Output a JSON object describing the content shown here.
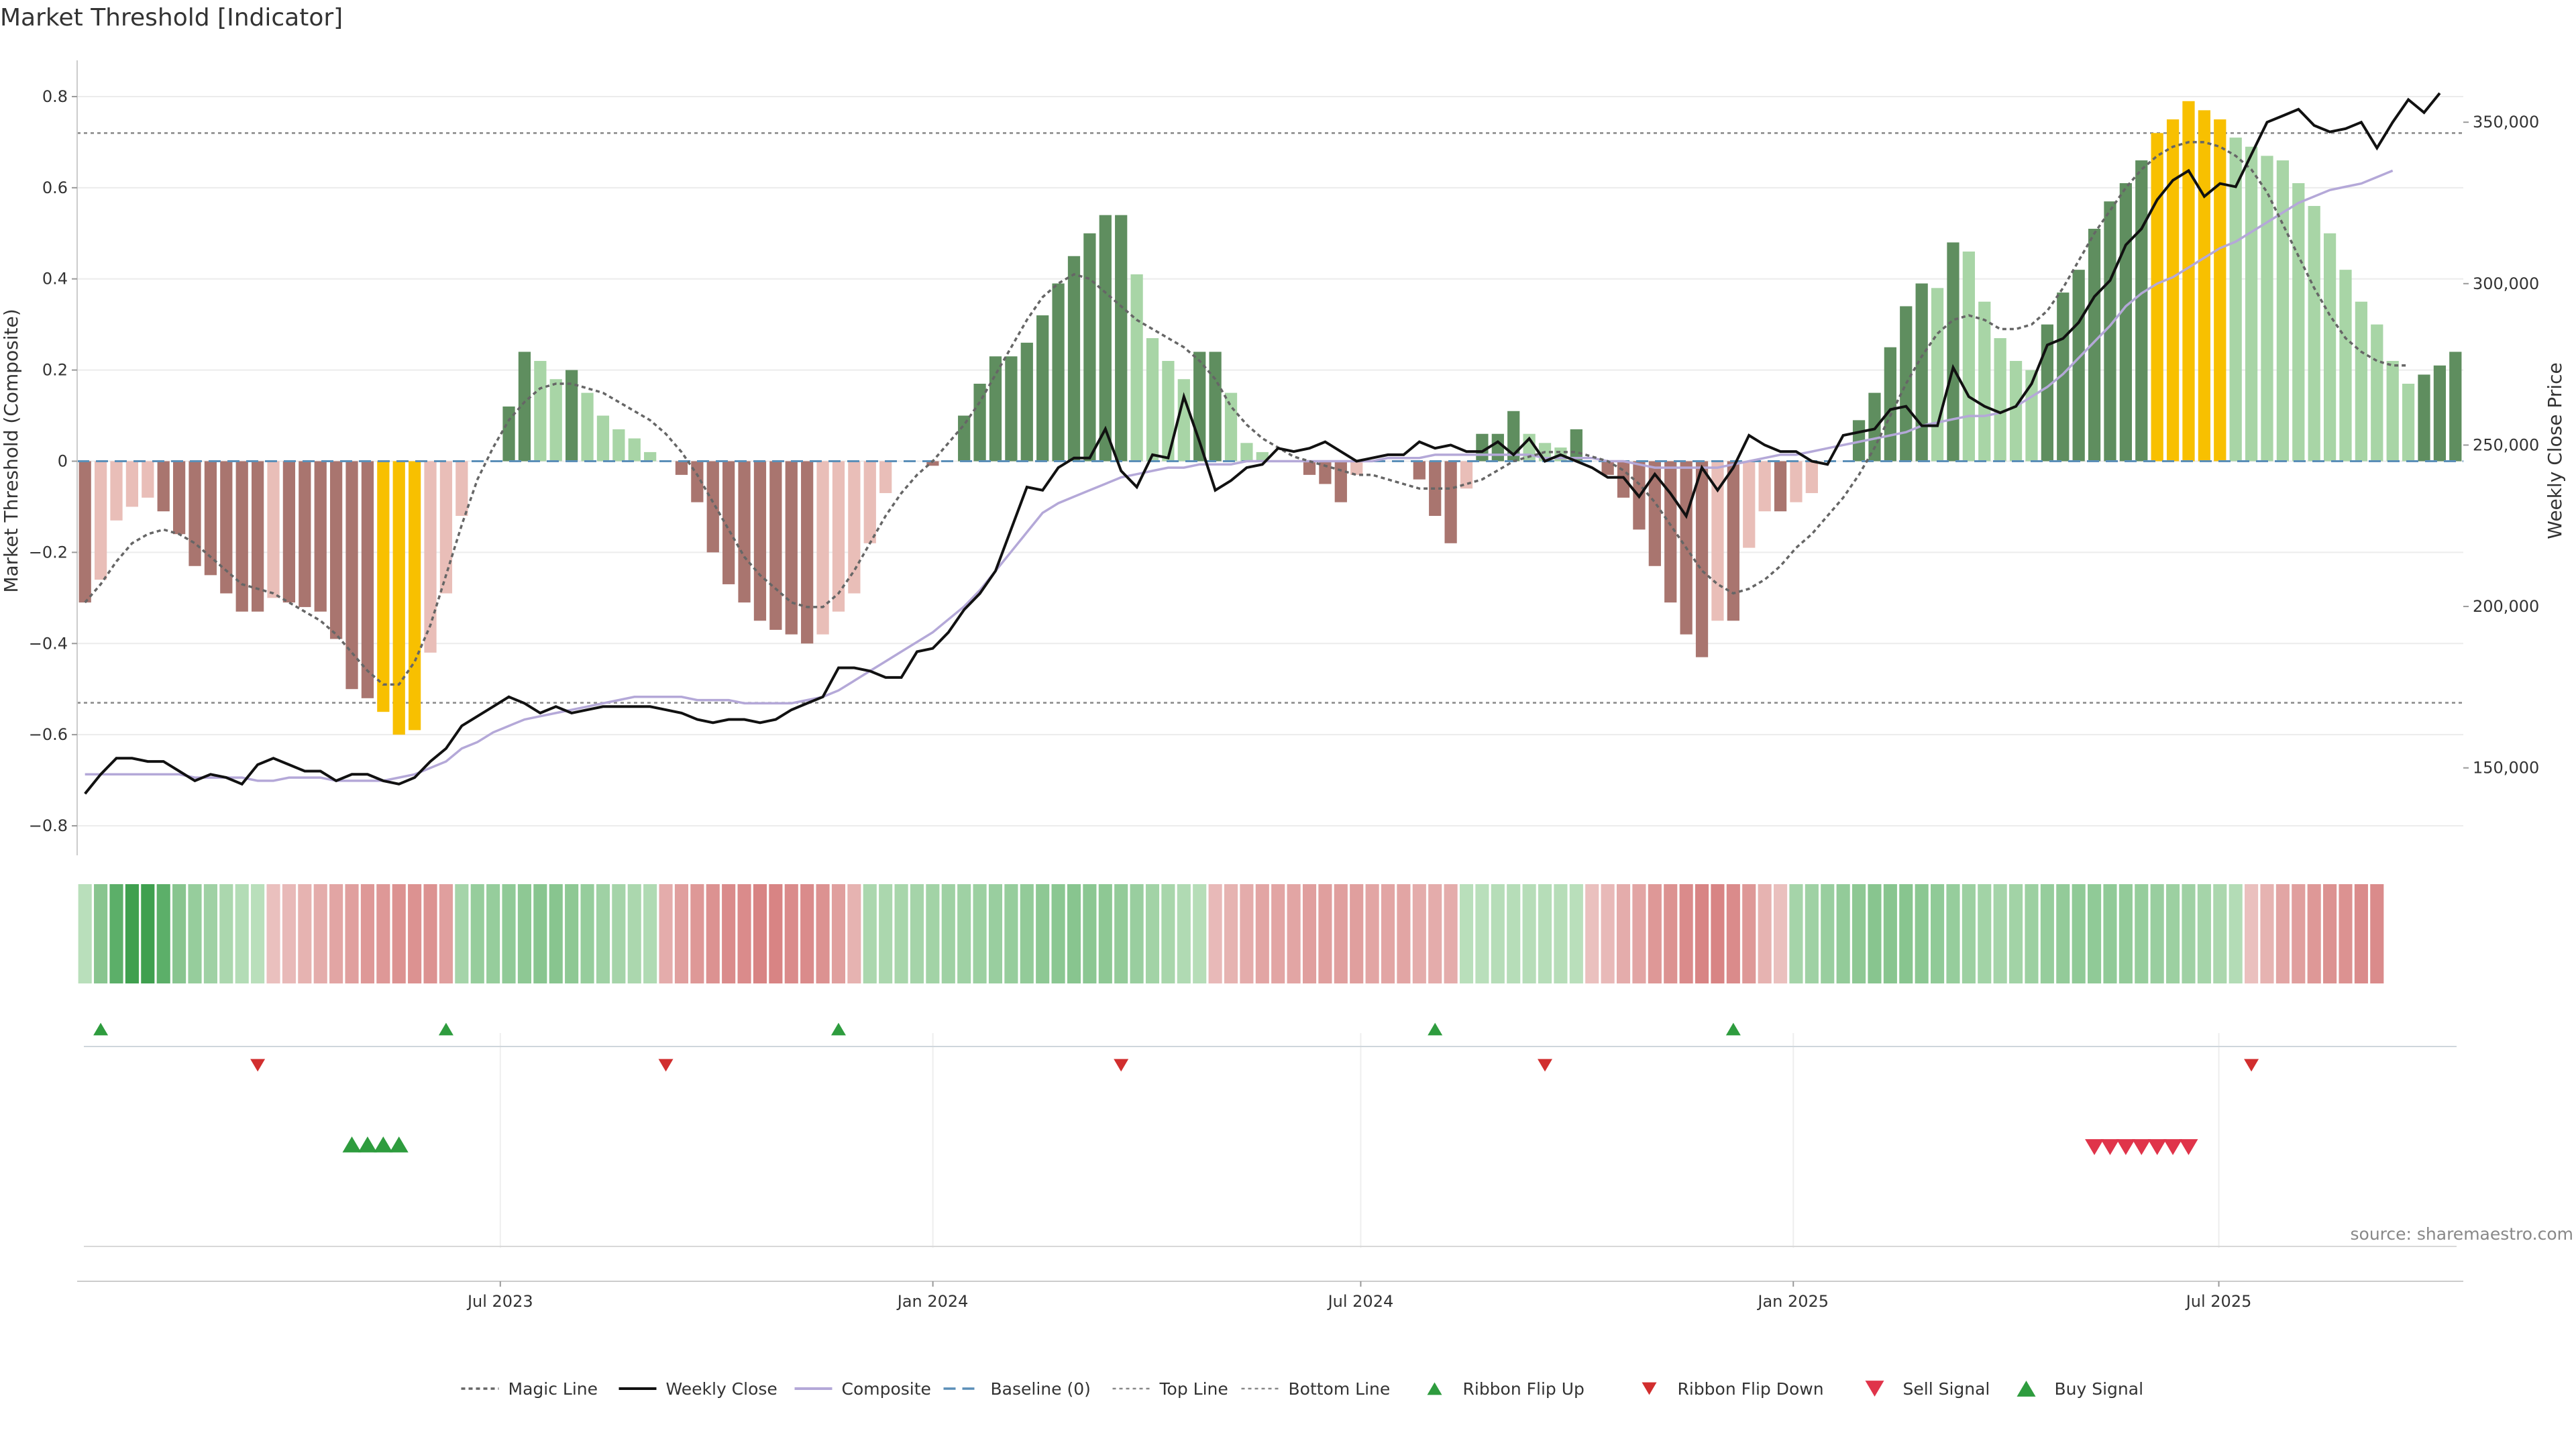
{
  "chart_data": {
    "type": "bar",
    "title": "Market Threshold [Indicator]",
    "ylabel_left": "Market Threshold (Composite)",
    "ylabel_right": "Weekly Close Price",
    "source": "source: sharemaestro.com",
    "x_range": [
      "2023-01-02",
      "2025-10-13"
    ],
    "x_ticks": [
      {
        "date": "2023-07-01",
        "label": "Jul 2023"
      },
      {
        "date": "2024-01-01",
        "label": "Jan 2024"
      },
      {
        "date": "2024-07-01",
        "label": "Jul 2024"
      },
      {
        "date": "2025-01-01",
        "label": "Jan 2025"
      },
      {
        "date": "2025-07-01",
        "label": "Jul 2025"
      }
    ],
    "ylim_left": [
      -0.85,
      0.85
    ],
    "yticks_left": [
      {
        "value": 0.8,
        "label": "0.8"
      },
      {
        "value": 0.6,
        "label": "0.6"
      },
      {
        "value": 0.4,
        "label": "0.4"
      },
      {
        "value": 0.2,
        "label": "0.2"
      },
      {
        "value": 0,
        "label": "0"
      },
      {
        "value": -0.2,
        "label": "−0.2"
      },
      {
        "value": -0.4,
        "label": "−0.4"
      },
      {
        "value": -0.6,
        "label": "−0.6"
      },
      {
        "value": -0.8,
        "label": "−0.8"
      }
    ],
    "ylim_right": [
      125000,
      365000
    ],
    "yticks_right": [
      {
        "value": 150000,
        "label": "150,000"
      },
      {
        "value": 200000,
        "label": "200,000"
      },
      {
        "value": 250000,
        "label": "250,000"
      },
      {
        "value": 300000,
        "label": "300,000"
      },
      {
        "value": 350000,
        "label": "350,000"
      }
    ],
    "top_line": 0.72,
    "bottom_line": -0.53,
    "baseline": 0,
    "composite_bars": [
      -0.31,
      -0.26,
      -0.13,
      -0.1,
      -0.08,
      -0.11,
      -0.16,
      -0.23,
      -0.25,
      -0.29,
      -0.33,
      -0.33,
      -0.3,
      -0.31,
      -0.32,
      -0.33,
      -0.39,
      -0.5,
      -0.52,
      -0.55,
      -0.6,
      -0.59,
      -0.42,
      -0.29,
      -0.12,
      0,
      0,
      0.12,
      0.24,
      0.22,
      0.18,
      0.2,
      0.15,
      0.1,
      0.07,
      0.05,
      0.02,
      0,
      -0.03,
      -0.09,
      -0.2,
      -0.27,
      -0.31,
      -0.35,
      -0.37,
      -0.38,
      -0.4,
      -0.38,
      -0.33,
      -0.29,
      -0.18,
      -0.07,
      0,
      0,
      -0.01,
      0,
      0.1,
      0.17,
      0.23,
      0.23,
      0.26,
      0.32,
      0.39,
      0.45,
      0.5,
      0.54,
      0.54,
      0.41,
      0.27,
      0.22,
      0.18,
      0.24,
      0.24,
      0.15,
      0.04,
      0.02,
      0,
      0,
      -0.03,
      -0.05,
      -0.09,
      -0.03,
      0,
      0,
      0,
      -0.04,
      -0.12,
      -0.18,
      -0.06,
      0.06,
      0.06,
      0.11,
      0.06,
      0.04,
      0.03,
      0.07,
      0,
      -0.03,
      -0.08,
      -0.15,
      -0.23,
      -0.31,
      -0.38,
      -0.43,
      -0.35,
      -0.35,
      -0.19,
      -0.11,
      -0.11,
      -0.09,
      -0.07,
      0,
      0,
      0.09,
      0.15,
      0.25,
      0.34,
      0.39,
      0.38,
      0.48,
      0.46,
      0.35,
      0.27,
      0.22,
      0.2,
      0.3,
      0.37,
      0.42,
      0.51,
      0.57,
      0.61,
      0.66,
      0.72,
      0.75,
      0.79,
      0.77,
      0.75,
      0.71,
      0.69,
      0.67,
      0.66,
      0.61,
      0.56,
      0.5,
      0.42,
      0.35,
      0.3,
      0.22,
      0.17,
      0.19,
      0.21,
      0.24
    ],
    "weekly_close": [
      142000,
      148000,
      153000,
      153000,
      152000,
      152000,
      149000,
      146000,
      148000,
      147000,
      145000,
      151000,
      153000,
      151000,
      149000,
      149000,
      146000,
      148000,
      148000,
      146000,
      145000,
      147000,
      152000,
      156000,
      163000,
      166000,
      169000,
      172000,
      170000,
      167000,
      169000,
      167000,
      168000,
      169000,
      169000,
      169000,
      169000,
      168000,
      167000,
      165000,
      164000,
      165000,
      165000,
      164000,
      165000,
      168000,
      170000,
      172000,
      181000,
      181000,
      180000,
      178000,
      178000,
      186000,
      187000,
      192000,
      199000,
      204000,
      211000,
      224000,
      237000,
      236000,
      243000,
      246000,
      246000,
      255000,
      242000,
      237000,
      247000,
      246000,
      265000,
      251000,
      236000,
      239000,
      243000,
      244000,
      249000,
      248000,
      249000,
      251000,
      248000,
      245000,
      246000,
      247000,
      247000,
      251000,
      249000,
      250000,
      248000,
      248000,
      251000,
      247000,
      252000,
      245000,
      247000,
      245000,
      243000,
      240000,
      240000,
      234000,
      241000,
      235000,
      228000,
      243000,
      236000,
      243000,
      253000,
      250000,
      248000,
      248000,
      245000,
      244000,
      253000,
      254000,
      255000,
      261000,
      262000,
      256000,
      256000,
      274000,
      265000,
      262000,
      260000,
      262000,
      269000,
      281000,
      283000,
      288000,
      296000,
      301000,
      312000,
      317000,
      326000,
      332000,
      335000,
      327000,
      331000,
      330000,
      340000,
      350000,
      352000,
      354000,
      349000,
      347000,
      348000,
      350000,
      342000,
      350000,
      357000,
      353000,
      359000
    ],
    "composite_line": [
      148000,
      148000,
      148000,
      148000,
      148000,
      148000,
      148000,
      147000,
      147000,
      147000,
      147000,
      146000,
      146000,
      147000,
      147000,
      147000,
      146000,
      146000,
      146000,
      146000,
      147000,
      148000,
      150000,
      152000,
      156000,
      158000,
      161000,
      163000,
      165000,
      166000,
      167000,
      168000,
      169000,
      170000,
      171000,
      172000,
      172000,
      172000,
      172000,
      171000,
      171000,
      171000,
      170000,
      170000,
      170000,
      170000,
      171000,
      172000,
      174000,
      177000,
      180000,
      183000,
      186000,
      189000,
      192000,
      196000,
      200000,
      205000,
      211000,
      217000,
      223000,
      229000,
      232000,
      234000,
      236000,
      238000,
      240000,
      241000,
      242000,
      243000,
      243000,
      244000,
      244000,
      244000,
      245000,
      245000,
      245000,
      245000,
      245000,
      245000,
      245000,
      245000,
      245000,
      246000,
      246000,
      246000,
      247000,
      247000,
      247000,
      247000,
      247000,
      247000,
      247000,
      246000,
      246000,
      246000,
      246000,
      245000,
      245000,
      244000,
      243000,
      243000,
      243000,
      243000,
      243000,
      244000,
      245000,
      246000,
      247000,
      247000,
      248000,
      249000,
      250000,
      251000,
      252000,
      253000,
      254000,
      256000,
      257000,
      258000,
      259000,
      259000,
      260000,
      262000,
      265000,
      268000,
      272000,
      277000,
      282000,
      287000,
      293000,
      297000,
      300000,
      302000,
      305000,
      308000,
      311000,
      313000,
      316000,
      319000,
      322000,
      325000,
      327000,
      329000,
      330000,
      331000,
      333000,
      335000
    ],
    "magic_line": [
      -0.31,
      -0.27,
      -0.22,
      -0.18,
      -0.16,
      -0.15,
      -0.16,
      -0.18,
      -0.21,
      -0.24,
      -0.27,
      -0.28,
      -0.29,
      -0.31,
      -0.33,
      -0.35,
      -0.38,
      -0.42,
      -0.46,
      -0.49,
      -0.49,
      -0.44,
      -0.36,
      -0.25,
      -0.14,
      -0.04,
      0.03,
      0.09,
      0.13,
      0.16,
      0.17,
      0.17,
      0.16,
      0.15,
      0.13,
      0.11,
      0.09,
      0.06,
      0.02,
      -0.03,
      -0.09,
      -0.15,
      -0.21,
      -0.25,
      -0.28,
      -0.31,
      -0.32,
      -0.32,
      -0.29,
      -0.24,
      -0.18,
      -0.12,
      -0.07,
      -0.03,
      0,
      0.04,
      0.08,
      0.13,
      0.19,
      0.25,
      0.31,
      0.36,
      0.39,
      0.41,
      0.4,
      0.37,
      0.34,
      0.31,
      0.29,
      0.27,
      0.25,
      0.22,
      0.18,
      0.12,
      0.08,
      0.05,
      0.03,
      0.01,
      0,
      -0.01,
      -0.02,
      -0.03,
      -0.03,
      -0.04,
      -0.05,
      -0.06,
      -0.06,
      -0.06,
      -0.05,
      -0.04,
      -0.02,
      0,
      0.01,
      0.02,
      0.02,
      0.02,
      0.01,
      0,
      -0.02,
      -0.05,
      -0.09,
      -0.14,
      -0.19,
      -0.24,
      -0.27,
      -0.29,
      -0.28,
      -0.26,
      -0.23,
      -0.19,
      -0.16,
      -0.12,
      -0.08,
      -0.03,
      0.03,
      0.1,
      0.17,
      0.23,
      0.28,
      0.31,
      0.32,
      0.31,
      0.29,
      0.29,
      0.3,
      0.33,
      0.38,
      0.44,
      0.5,
      0.55,
      0.6,
      0.64,
      0.67,
      0.69,
      0.7,
      0.7,
      0.69,
      0.67,
      0.64,
      0.59,
      0.52,
      0.45,
      0.38,
      0.32,
      0.27,
      0.24,
      0.22,
      0.21,
      0.21
    ],
    "ribbon": [
      0.3,
      2,
      3.5,
      4.5,
      4.5,
      3.5,
      2,
      1.5,
      1.2,
      0.8,
      0.5,
      0.3,
      -0.2,
      -0.3,
      -0.4,
      -0.5,
      -0.6,
      -0.7,
      -0.8,
      -0.8,
      -0.9,
      -0.9,
      -0.9,
      -0.7,
      1,
      1.5,
      1.5,
      1.7,
      1.8,
      2,
      2,
      1.8,
      1.5,
      1.2,
      1,
      0.8,
      0.6,
      -0.5,
      -0.7,
      -0.8,
      -0.9,
      -1,
      -1,
      -1.1,
      -1.1,
      -1,
      -1,
      -0.9,
      -0.7,
      -0.4,
      0.8,
      0.8,
      0.9,
      1,
      1.1,
      1.2,
      1.2,
      1.3,
      1.4,
      1.5,
      1.6,
      1.8,
      1.9,
      2,
      1.9,
      1.8,
      1.6,
      1.4,
      1.1,
      0.9,
      0.6,
      0.4,
      -0.3,
      -0.4,
      -0.5,
      -0.6,
      -0.6,
      -0.6,
      -0.7,
      -0.7,
      -0.7,
      -0.7,
      -0.6,
      -0.6,
      -0.6,
      -0.5,
      -0.5,
      -0.5,
      0.3,
      0.3,
      0.4,
      0.4,
      0.4,
      0.4,
      0.4,
      0.3,
      -0.2,
      -0.3,
      -0.5,
      -0.6,
      -0.8,
      -0.9,
      -1,
      -1.1,
      -1.1,
      -1,
      -0.8,
      -0.4,
      -0.2,
      1,
      1.2,
      1.4,
      1.6,
      1.8,
      2,
      2,
      2,
      1.9,
      1.7,
      1.5,
      1.3,
      1.1,
      1,
      1.1,
      1.3,
      1.5,
      1.6,
      1.7,
      1.7,
      1.7,
      1.6,
      1.5,
      1.4,
      1.3,
      1.2,
      1,
      0.8,
      0.5,
      -0.2,
      -0.4,
      -0.6,
      -0.7,
      -0.8,
      -0.9,
      -0.9,
      -1,
      -1
    ],
    "ribbon_flip_up": [
      1,
      23,
      48,
      86,
      105
    ],
    "ribbon_flip_down": [
      11,
      37,
      66,
      93,
      138
    ],
    "buy_signal": [
      17,
      18,
      19,
      20
    ],
    "sell_signal": [
      128,
      129,
      130,
      131,
      132,
      133,
      134
    ],
    "legend": [
      {
        "key": "magic",
        "label": "Magic Line"
      },
      {
        "key": "weekly",
        "label": "Weekly Close"
      },
      {
        "key": "composite",
        "label": "Composite"
      },
      {
        "key": "baseline",
        "label": "Baseline (0)"
      },
      {
        "key": "top",
        "label": "Top Line"
      },
      {
        "key": "bottom",
        "label": "Bottom Line"
      },
      {
        "key": "flipup",
        "label": "Ribbon Flip Up"
      },
      {
        "key": "flipdown",
        "label": "Ribbon Flip Down"
      },
      {
        "key": "sell",
        "label": "Sell Signal"
      },
      {
        "key": "buy",
        "label": "Buy Signal"
      }
    ],
    "colors": {
      "strong_pos": "#5f8e5f",
      "weak_pos": "#a8d5a6",
      "strong_neg": "#a9756f",
      "weak_neg": "#e9beb8",
      "extreme": "#f8c000",
      "weekly_close": "#111111",
      "composite_line": "#b4a8d8",
      "magic_line": "#666666",
      "baseline": "#5b8fb8",
      "guide": "#888888",
      "flip_up": "#2e9c3e",
      "flip_down": "#d12e2e",
      "ribbon_pos": "#3fa04f",
      "ribbon_neg": "#d47878"
    }
  }
}
